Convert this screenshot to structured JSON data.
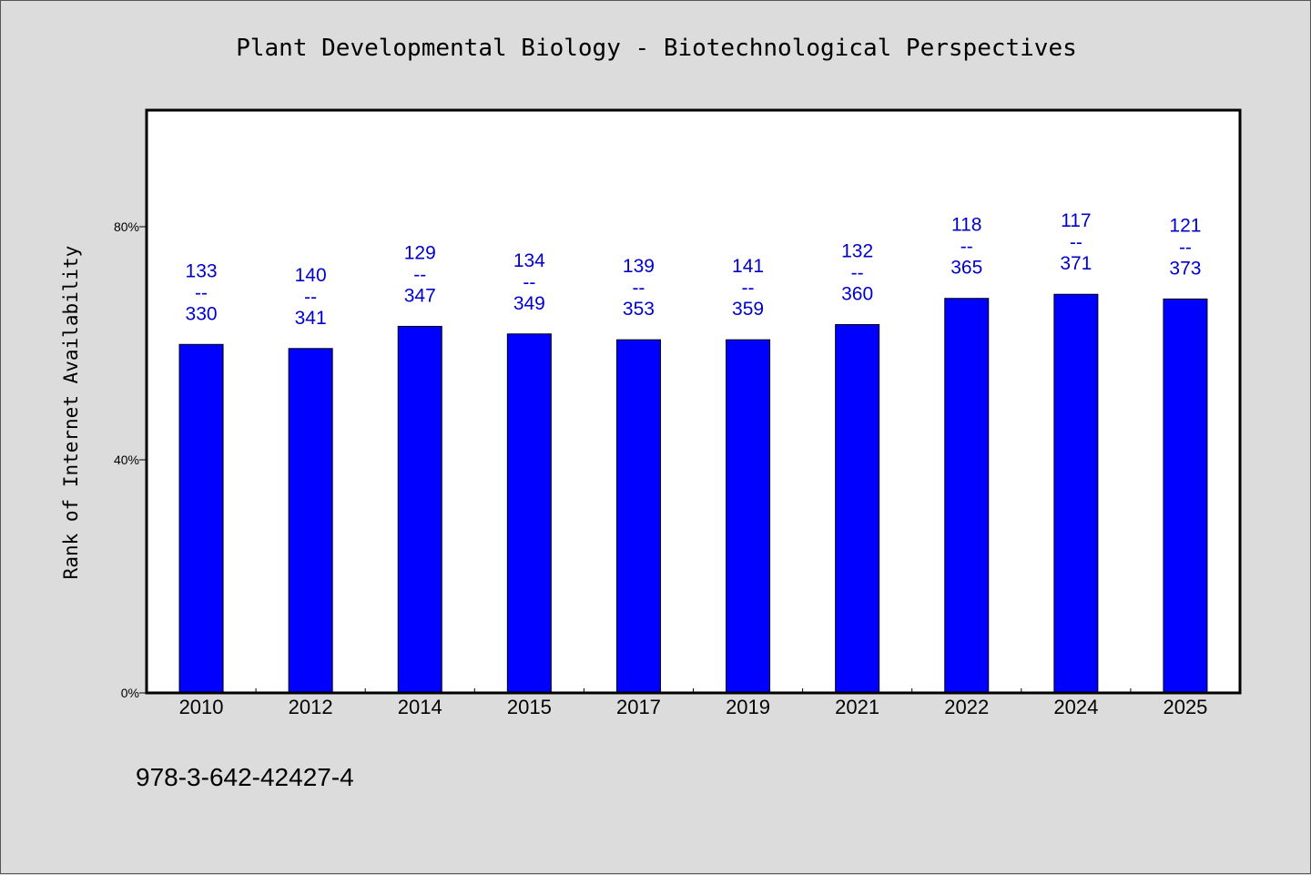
{
  "chart_data": {
    "type": "bar",
    "title": "Plant Developmental Biology - Biotechnological Perspectives",
    "ylabel": "Rank of Internet Availability",
    "xlabel": "",
    "ylim": [
      0,
      100
    ],
    "yticks": [
      0,
      40,
      80
    ],
    "ytick_labels": [
      "0%",
      "40%",
      "80%"
    ],
    "grid": false,
    "bar_color": "#0000ff",
    "label_color": "#0000cc",
    "categories": [
      "2010",
      "2012",
      "2014",
      "2015",
      "2017",
      "2019",
      "2021",
      "2022",
      "2024",
      "2025"
    ],
    "values": [
      59.8,
      59.1,
      62.9,
      61.6,
      60.6,
      60.6,
      63.2,
      67.7,
      68.4,
      67.6
    ],
    "bar_labels": [
      {
        "top": "133",
        "sep": "--",
        "bottom": "330"
      },
      {
        "top": "140",
        "sep": "--",
        "bottom": "341"
      },
      {
        "top": "129",
        "sep": "--",
        "bottom": "347"
      },
      {
        "top": "134",
        "sep": "--",
        "bottom": "349"
      },
      {
        "top": "139",
        "sep": "--",
        "bottom": "353"
      },
      {
        "top": "141",
        "sep": "--",
        "bottom": "359"
      },
      {
        "top": "132",
        "sep": "--",
        "bottom": "360"
      },
      {
        "top": "118",
        "sep": "--",
        "bottom": "365"
      },
      {
        "top": "117",
        "sep": "--",
        "bottom": "371"
      },
      {
        "top": "121",
        "sep": "--",
        "bottom": "373"
      }
    ]
  },
  "footer": {
    "isbn": "978-3-642-42427-4"
  }
}
